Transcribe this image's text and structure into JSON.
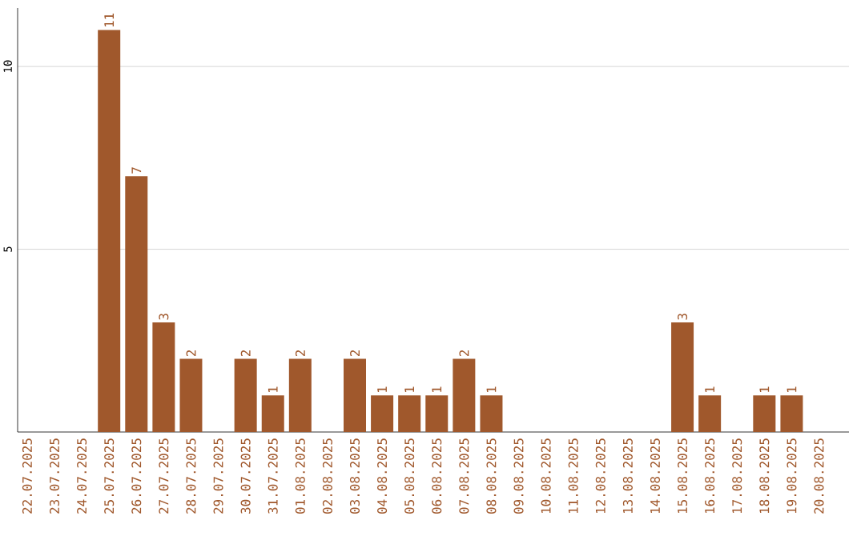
{
  "chart_data": {
    "type": "bar",
    "categories": [
      "22.07.2025",
      "23.07.2025",
      "24.07.2025",
      "25.07.2025",
      "26.07.2025",
      "27.07.2025",
      "28.07.2025",
      "29.07.2025",
      "30.07.2025",
      "31.07.2025",
      "01.08.2025",
      "02.08.2025",
      "03.08.2025",
      "04.08.2025",
      "05.08.2025",
      "06.08.2025",
      "07.08.2025",
      "08.08.2025",
      "09.08.2025",
      "10.08.2025",
      "11.08.2025",
      "12.08.2025",
      "13.08.2025",
      "14.08.2025",
      "15.08.2025",
      "16.08.2025",
      "17.08.2025",
      "18.08.2025",
      "19.08.2025",
      "20.08.2025"
    ],
    "values": [
      null,
      null,
      null,
      11,
      7,
      3,
      2,
      null,
      2,
      1,
      2,
      null,
      2,
      1,
      1,
      1,
      2,
      1,
      null,
      null,
      null,
      null,
      null,
      null,
      3,
      1,
      null,
      1,
      1,
      null
    ],
    "color": "#a0582c",
    "ylim": [
      0,
      11.6
    ],
    "yticks": [
      5,
      10
    ],
    "grid": "y",
    "data_labels": true
  }
}
